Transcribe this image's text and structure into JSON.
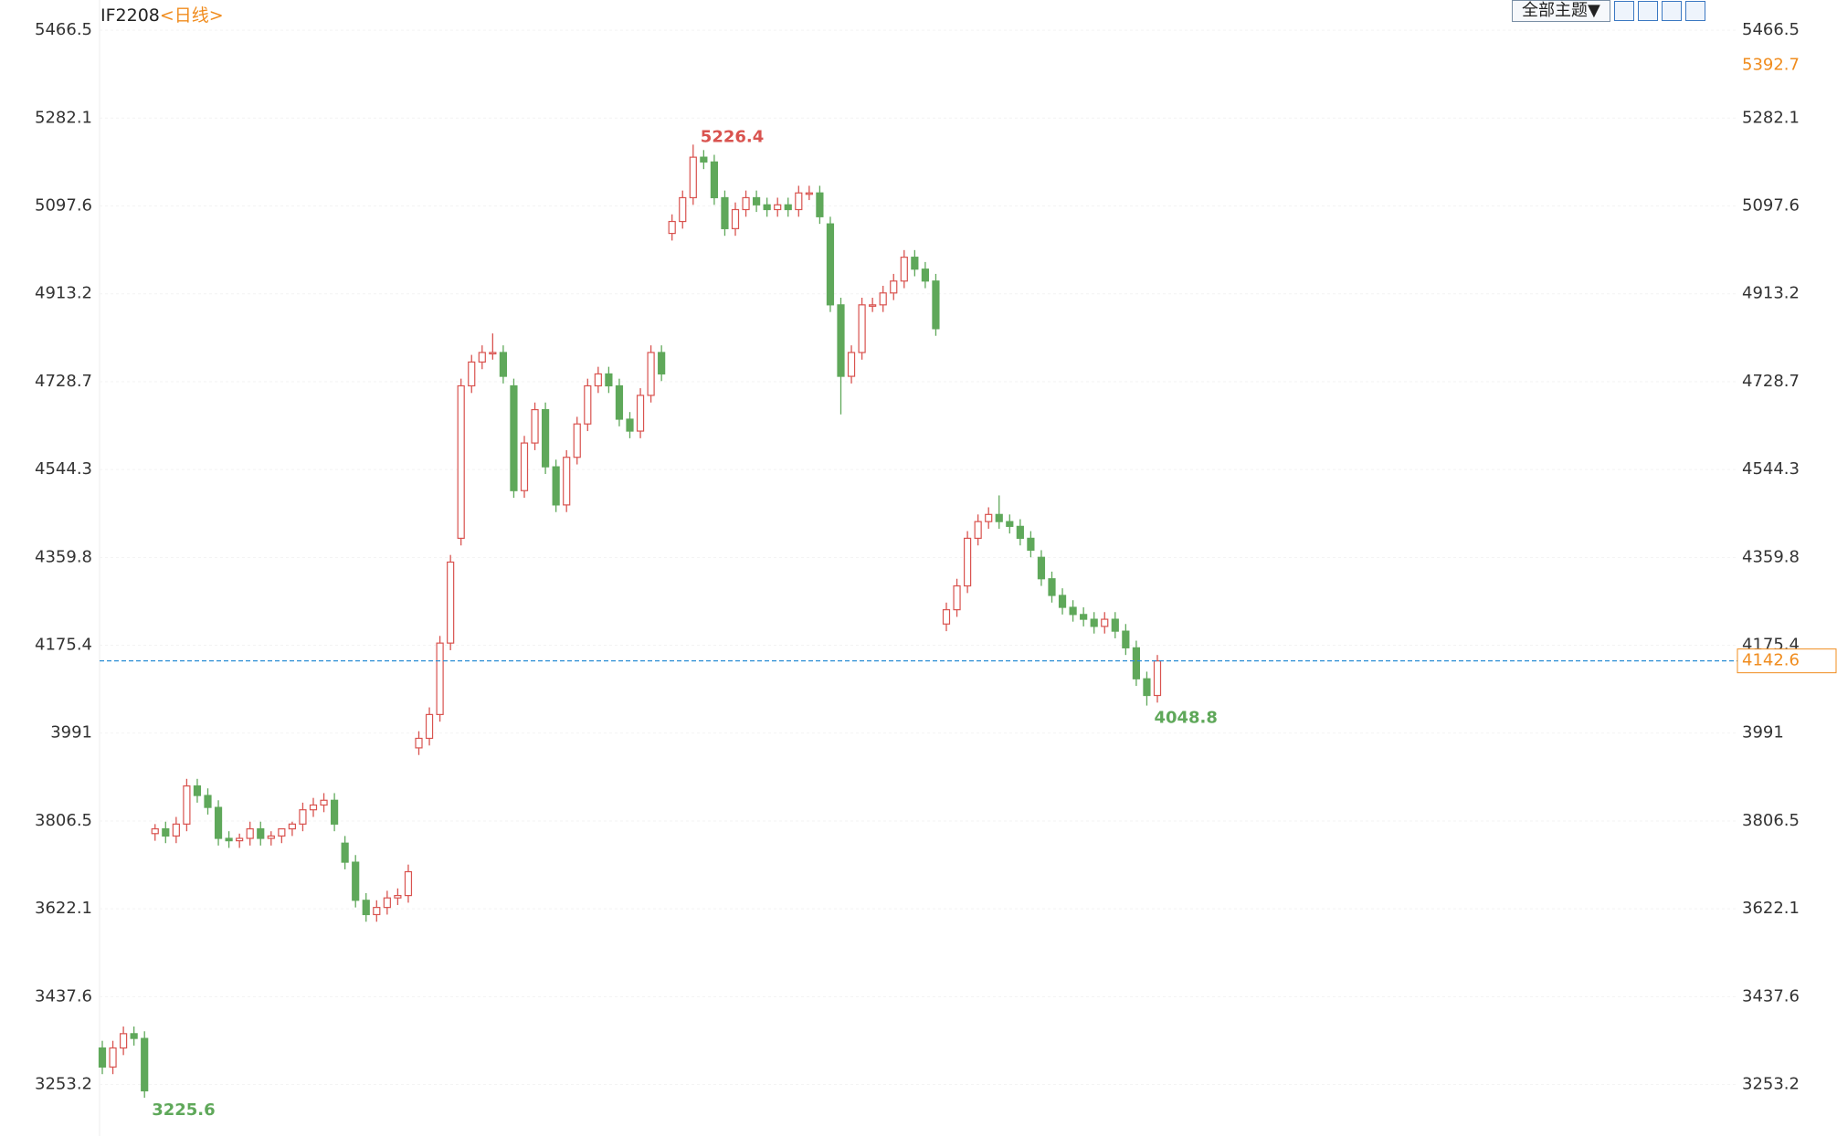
{
  "chart_data": {
    "type": "candlestick",
    "title": "IF2208",
    "subtitle": "<日线>",
    "theme_button": "全部主题▼",
    "up_color": "#d9534f",
    "down_color": "#5fa85a",
    "last_color": "#f08c1e",
    "grid": true,
    "ylim": [
      3145,
      5530
    ],
    "yticks": [
      5466.5,
      5282.1,
      5097.6,
      4913.2,
      4728.7,
      4544.3,
      4359.8,
      4175.4,
      3991.0,
      3806.5,
      3622.1,
      3437.6,
      3253.2
    ],
    "right_marker": 5392.7,
    "open": [
      3330,
      3290,
      3330,
      3360,
      3350,
      3780,
      3790,
      3775,
      3800,
      3880,
      3860,
      3835,
      3770,
      3765,
      3770,
      3790,
      3770,
      3775,
      3790,
      3800,
      3830,
      3840,
      3850,
      3760,
      3720,
      3640,
      3610,
      3625,
      3645,
      3650,
      3960,
      3980,
      4030,
      4180,
      4400,
      4720,
      4770,
      4790,
      4790,
      4720,
      4500,
      4600,
      4670,
      4550,
      4470,
      4570,
      4640,
      4720,
      4745,
      4720,
      4650,
      4625,
      4700,
      4790,
      5040,
      5065,
      5115,
      5200,
      5190,
      5115,
      5050,
      5090,
      5115,
      5100,
      5090,
      5100,
      5090,
      5125,
      5125,
      5060,
      4890,
      4740,
      4790,
      4890,
      4890,
      4915,
      4940,
      4990,
      4965,
      4940,
      4220,
      4250,
      4300,
      4400,
      4435,
      4450,
      4435,
      4425,
      4400,
      4360,
      4315,
      4280,
      4255,
      4240,
      4230,
      4215,
      4230,
      4205,
      4170,
      4105,
      4070
    ],
    "high": [
      3345,
      3345,
      3375,
      3375,
      3365,
      3800,
      3805,
      3815,
      3895,
      3895,
      3875,
      3850,
      3785,
      3780,
      3805,
      3805,
      3785,
      3790,
      3805,
      3845,
      3855,
      3865,
      3865,
      3775,
      3735,
      3655,
      3640,
      3660,
      3665,
      3715,
      3995,
      4045,
      4195,
      4365,
      4735,
      4785,
      4805,
      4830,
      4805,
      4735,
      4615,
      4685,
      4685,
      4565,
      4585,
      4655,
      4735,
      4760,
      4760,
      4735,
      4665,
      4715,
      4805,
      4805,
      5080,
      5130,
      5226.4,
      5215,
      5205,
      5130,
      5105,
      5130,
      5130,
      5115,
      5115,
      5115,
      5140,
      5140,
      5140,
      5075,
      4905,
      4805,
      4905,
      4905,
      4930,
      4955,
      5005,
      5005,
      4980,
      4955,
      4265,
      4315,
      4415,
      4450,
      4465,
      4490,
      4450,
      4440,
      4415,
      4375,
      4330,
      4295,
      4270,
      4255,
      4245,
      4245,
      4245,
      4220,
      4185,
      4120,
      4155
    ],
    "low": [
      3275,
      3275,
      3315,
      3335,
      3225.6,
      3765,
      3760,
      3760,
      3785,
      3845,
      3820,
      3755,
      3750,
      3750,
      3755,
      3755,
      3755,
      3760,
      3775,
      3785,
      3815,
      3825,
      3785,
      3705,
      3625,
      3595,
      3595,
      3610,
      3630,
      3635,
      3945,
      3965,
      4015,
      4165,
      4385,
      4705,
      4755,
      4775,
      4725,
      4485,
      4485,
      4585,
      4535,
      4455,
      4455,
      4555,
      4625,
      4705,
      4705,
      4635,
      4610,
      4610,
      4685,
      4730,
      5025,
      5050,
      5100,
      5175,
      5100,
      5035,
      5035,
      5075,
      5085,
      5075,
      5075,
      5075,
      5075,
      5110,
      5060,
      4875,
      4660,
      4725,
      4775,
      4875,
      4875,
      4900,
      4925,
      4950,
      4925,
      4825,
      4205,
      4235,
      4285,
      4385,
      4420,
      4420,
      4410,
      4385,
      4360,
      4300,
      4265,
      4240,
      4225,
      4215,
      4200,
      4200,
      4190,
      4155,
      4090,
      4048.8,
      4055
    ],
    "close": [
      3290,
      3330,
      3360,
      3350,
      3240,
      3790,
      3775,
      3800,
      3880,
      3860,
      3835,
      3770,
      3765,
      3770,
      3790,
      3770,
      3775,
      3790,
      3800,
      3830,
      3840,
      3850,
      3800,
      3720,
      3640,
      3610,
      3625,
      3645,
      3650,
      3700,
      3980,
      4030,
      4180,
      4350,
      4720,
      4770,
      4790,
      4790,
      4740,
      4500,
      4600,
      4670,
      4550,
      4470,
      4570,
      4640,
      4720,
      4745,
      4720,
      4650,
      4625,
      4700,
      4790,
      4745,
      5065,
      5115,
      5200,
      5190,
      5115,
      5050,
      5090,
      5115,
      5100,
      5090,
      5100,
      5090,
      5125,
      5125,
      5075,
      4890,
      4740,
      4790,
      4890,
      4890,
      4915,
      4940,
      4990,
      4965,
      4940,
      4840,
      4250,
      4300,
      4400,
      4435,
      4450,
      4435,
      4425,
      4400,
      4375,
      4315,
      4280,
      4255,
      4240,
      4230,
      4215,
      4230,
      4205,
      4170,
      4105,
      4070,
      4142.6
    ]
  }
}
